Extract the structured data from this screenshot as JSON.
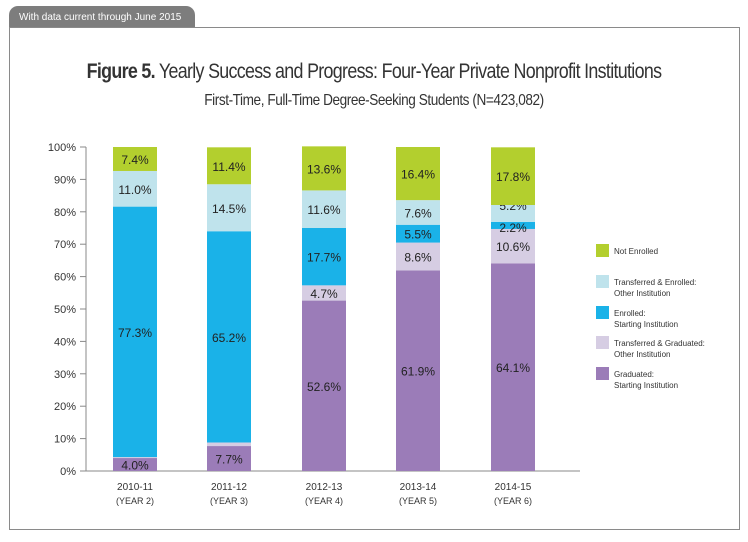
{
  "header": {
    "tab": "With data current through June 2015"
  },
  "chart_data": {
    "type": "bar",
    "stacked": true,
    "title_bold": "Figure 5.",
    "title": "Yearly Success and Progress: Four-Year Private Nonprofit Institutions",
    "subtitle": "First-Time, Full-Time Degree-Seeking Students (N=423,082)",
    "categories": [
      "2010-11",
      "2011-12",
      "2012-13",
      "2013-14",
      "2014-15"
    ],
    "category_sublabels": [
      "(YEAR 2)",
      "(YEAR 3)",
      "(YEAR 4)",
      "(YEAR 5)",
      "(YEAR 6)"
    ],
    "yticks": [
      "0%",
      "10%",
      "20%",
      "30%",
      "40%",
      "50%",
      "60%",
      "70%",
      "80%",
      "90%",
      "100%"
    ],
    "ylim": [
      0,
      100
    ],
    "legend_position": "right",
    "series": [
      {
        "name": "Graduated: Starting Institution",
        "line1": "Graduated:",
        "line2": "Starting Institution",
        "color": "#9b7cb8",
        "values": [
          4.0,
          7.7,
          52.6,
          61.9,
          64.1
        ]
      },
      {
        "name": "Transferred & Graduated: Other Institution",
        "line1": "Transferred & Graduated:",
        "line2": "Other Institution",
        "color": "#d6cde3",
        "values": [
          0.3,
          1.1,
          4.7,
          8.6,
          10.6
        ]
      },
      {
        "name": "Enrolled: Starting Institution",
        "line1": "Enrolled:",
        "line2": "Starting Institution",
        "color": "#1ab2e8",
        "values": [
          77.3,
          65.2,
          17.7,
          5.5,
          2.2
        ]
      },
      {
        "name": "Transferred & Enrolled: Other Institution",
        "line1": "Transferred & Enrolled:",
        "line2": "Other Institution",
        "color": "#bfe3ec",
        "values": [
          11.0,
          14.5,
          11.6,
          7.6,
          5.2
        ]
      },
      {
        "name": "Not Enrolled",
        "line1": "Not Enrolled",
        "line2": "",
        "color": "#b3cf2e",
        "values": [
          7.4,
          11.4,
          13.6,
          16.4,
          17.8
        ]
      }
    ]
  }
}
